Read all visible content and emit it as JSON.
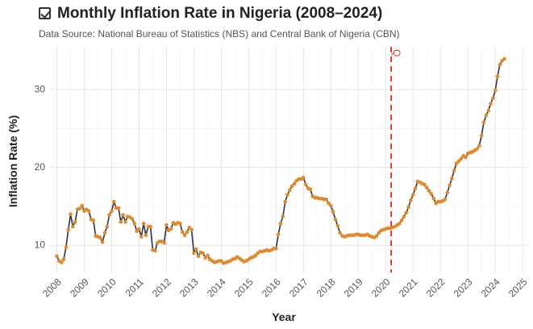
{
  "chart_data": {
    "type": "line",
    "title": "Monthly Inflation Rate in Nigeria (2008–2024)",
    "subtitle": "Data Source: National Bureau of Statistics (NBS) and Central Bank of Nigeria (CBN)",
    "xlabel": "Year",
    "ylabel": "Inflation Rate (%)",
    "xlim": [
      2007.75,
      2025.2
    ],
    "ylim": [
      6.5,
      35.5
    ],
    "x_ticks": [
      2008,
      2009,
      2010,
      2011,
      2012,
      2013,
      2014,
      2015,
      2016,
      2017,
      2018,
      2019,
      2020,
      2021,
      2022,
      2023,
      2024,
      2025
    ],
    "x_tick_labels": [
      "2008",
      "2009",
      "2010",
      "2011",
      "2012",
      "2013",
      "2014",
      "2015",
      "2016",
      "2017",
      "2018",
      "2019",
      "2020",
      "2021",
      "2022",
      "2023",
      "2024",
      "2025"
    ],
    "y_ticks": [
      10,
      20,
      30
    ],
    "y_tick_labels": [
      "10",
      "20",
      "30"
    ],
    "grid": true,
    "line_color": "#2b3440",
    "point_color": "#e08a2c",
    "reference_line": {
      "x": 2020.2,
      "color": "#e23a2f",
      "style": "dashed",
      "annotation": "Q"
    },
    "series": [
      {
        "x": [
          2008.0,
          2008.083,
          2008.167,
          2008.25,
          2008.333,
          2008.417,
          2008.5,
          2008.583,
          2008.667,
          2008.75,
          2008.833,
          2008.917,
          2009.0,
          2009.083,
          2009.167,
          2009.25,
          2009.333,
          2009.417,
          2009.5,
          2009.583,
          2009.667,
          2009.75,
          2009.833,
          2009.917,
          2010.0,
          2010.083,
          2010.167,
          2010.25,
          2010.333,
          2010.417,
          2010.5,
          2010.583,
          2010.667,
          2010.75,
          2010.833,
          2010.917,
          2011.0,
          2011.083,
          2011.167,
          2011.25,
          2011.333,
          2011.417,
          2011.5,
          2011.583,
          2011.667,
          2011.75,
          2011.833,
          2011.917,
          2012.0,
          2012.083,
          2012.167,
          2012.25,
          2012.333,
          2012.417,
          2012.5,
          2012.583,
          2012.667,
          2012.75,
          2012.833,
          2012.917,
          2013.0,
          2013.083,
          2013.167,
          2013.25,
          2013.333,
          2013.417,
          2013.5,
          2013.583,
          2013.667,
          2013.75,
          2013.833,
          2013.917,
          2014.0,
          2014.083,
          2014.167,
          2014.25,
          2014.333,
          2014.417,
          2014.5,
          2014.583,
          2014.667,
          2014.75,
          2014.833,
          2014.917,
          2015.0,
          2015.083,
          2015.167,
          2015.25,
          2015.333,
          2015.417,
          2015.5,
          2015.583,
          2015.667,
          2015.75,
          2015.833,
          2015.917,
          2016.0,
          2016.083,
          2016.167,
          2016.25,
          2016.333,
          2016.417,
          2016.5,
          2016.583,
          2016.667,
          2016.75,
          2016.833,
          2016.917,
          2017.0,
          2017.083,
          2017.167,
          2017.25,
          2017.333,
          2017.417,
          2017.5,
          2017.583,
          2017.667,
          2017.75,
          2017.833,
          2017.917,
          2018.0,
          2018.083,
          2018.167,
          2018.25,
          2018.333,
          2018.417,
          2018.5,
          2018.583,
          2018.667,
          2018.75,
          2018.833,
          2018.917,
          2019.0,
          2019.083,
          2019.167,
          2019.25,
          2019.333,
          2019.417,
          2019.5,
          2019.583,
          2019.667,
          2019.75,
          2019.833,
          2019.917,
          2020.0,
          2020.083,
          2020.167,
          2020.25,
          2020.333,
          2020.417,
          2020.5,
          2020.583,
          2020.667,
          2020.75,
          2020.833,
          2020.917,
          2021.0,
          2021.083,
          2021.167,
          2021.25,
          2021.333,
          2021.417,
          2021.5,
          2021.583,
          2021.667,
          2021.75,
          2021.833,
          2021.917,
          2022.0,
          2022.083,
          2022.167,
          2022.25,
          2022.333,
          2022.417,
          2022.5,
          2022.583,
          2022.667,
          2022.75,
          2022.833,
          2022.917,
          2023.0,
          2023.083,
          2023.167,
          2023.25,
          2023.333,
          2023.417,
          2023.5,
          2023.583,
          2023.667,
          2023.75,
          2023.833,
          2023.917,
          2024.0,
          2024.083,
          2024.167,
          2024.25,
          2024.333
        ],
        "y": [
          8.6,
          8.0,
          7.8,
          8.2,
          9.7,
          12.0,
          14.0,
          12.4,
          13.0,
          14.6,
          14.7,
          15.1,
          14.4,
          14.6,
          14.4,
          13.3,
          13.2,
          11.2,
          11.1,
          11.0,
          10.4,
          11.6,
          12.4,
          13.9,
          14.4,
          15.6,
          14.8,
          14.8,
          13.0,
          13.9,
          13.0,
          13.7,
          13.6,
          13.4,
          12.8,
          11.8,
          12.1,
          11.1,
          12.8,
          11.3,
          12.4,
          12.4,
          9.4,
          9.3,
          10.3,
          10.5,
          10.5,
          10.3,
          12.6,
          11.9,
          12.1,
          12.9,
          12.7,
          12.9,
          12.8,
          11.7,
          11.3,
          11.7,
          12.3,
          12.0,
          9.0,
          9.5,
          8.6,
          9.1,
          9.0,
          8.4,
          8.7,
          8.2,
          8.0,
          7.8,
          7.9,
          8.0,
          8.0,
          7.7,
          7.8,
          7.9,
          8.0,
          8.2,
          8.3,
          8.5,
          8.3,
          8.1,
          7.9,
          8.0,
          8.2,
          8.4,
          8.5,
          8.7,
          9.0,
          9.2,
          9.2,
          9.3,
          9.4,
          9.3,
          9.4,
          9.6,
          9.6,
          11.4,
          12.8,
          13.7,
          15.6,
          16.5,
          17.1,
          17.6,
          17.9,
          18.3,
          18.5,
          18.5,
          18.7,
          17.8,
          17.3,
          17.2,
          16.3,
          16.1,
          16.1,
          16.0,
          16.0,
          15.9,
          15.9,
          15.4,
          15.1,
          14.3,
          13.3,
          12.5,
          11.6,
          11.2,
          11.1,
          11.2,
          11.3,
          11.3,
          11.3,
          11.4,
          11.4,
          11.3,
          11.3,
          11.3,
          11.4,
          11.2,
          11.1,
          11.0,
          11.2,
          11.6,
          11.9,
          12.0,
          12.1,
          12.2,
          12.2,
          12.3,
          12.4,
          12.6,
          12.8,
          13.2,
          13.7,
          14.2,
          14.9,
          15.8,
          16.5,
          17.3,
          18.2,
          18.1,
          17.9,
          17.8,
          17.4,
          17.0,
          16.6,
          16.0,
          15.4,
          15.6,
          15.6,
          15.7,
          15.9,
          16.8,
          17.7,
          18.6,
          19.6,
          20.5,
          20.8,
          21.1,
          21.5,
          21.3,
          21.8,
          21.9,
          22.0,
          22.2,
          22.4,
          22.8,
          24.1,
          25.8,
          26.7,
          27.3,
          28.2,
          28.9,
          29.9,
          31.7,
          33.2,
          33.7,
          33.95
        ]
      }
    ]
  }
}
